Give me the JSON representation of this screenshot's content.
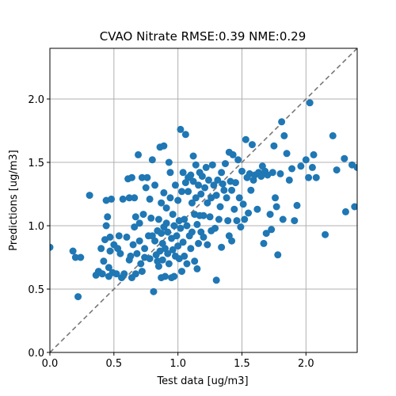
{
  "chart_data": {
    "type": "scatter",
    "title": "CVAO Nitrate RMSE:0.39 NME:0.29",
    "xlabel": "Test data [ug/m3]",
    "ylabel": "Predictions [ug/m3]",
    "xlim": [
      0.0,
      2.4
    ],
    "ylim": [
      0.0,
      2.4
    ],
    "xticks": [
      "0.0",
      "0.5",
      "1.0",
      "1.5",
      "2.0"
    ],
    "yticks": [
      "0.0",
      "0.5",
      "1.0",
      "1.5",
      "2.0"
    ],
    "grid": true,
    "identity_line": true,
    "colors": {
      "points": "#1f77b4",
      "identity_line": "#777777",
      "grid": "#b0b0b0"
    },
    "series": [
      {
        "points": [
          [
            0.0,
            0.83
          ],
          [
            0.18,
            0.8
          ],
          [
            0.2,
            0.75
          ],
          [
            0.22,
            0.44
          ],
          [
            0.24,
            0.75
          ],
          [
            0.31,
            1.24
          ],
          [
            0.36,
            0.61
          ],
          [
            0.38,
            0.64
          ],
          [
            0.4,
            0.82
          ],
          [
            0.41,
            0.62
          ],
          [
            0.42,
            0.72
          ],
          [
            0.43,
            0.89
          ],
          [
            0.44,
            1.0
          ],
          [
            0.44,
            1.2
          ],
          [
            0.45,
            1.07
          ],
          [
            0.46,
            0.6
          ],
          [
            0.46,
            0.67
          ],
          [
            0.47,
            0.8
          ],
          [
            0.47,
            0.91
          ],
          [
            0.48,
            1.21
          ],
          [
            0.49,
            0.63
          ],
          [
            0.5,
            0.85
          ],
          [
            0.52,
            0.62
          ],
          [
            0.53,
            0.82
          ],
          [
            0.54,
            0.92
          ],
          [
            0.55,
            0.78
          ],
          [
            0.56,
            0.59
          ],
          [
            0.57,
            1.21
          ],
          [
            0.58,
            0.62
          ],
          [
            0.6,
            0.91
          ],
          [
            0.61,
            1.37
          ],
          [
            0.62,
            1.22
          ],
          [
            0.62,
            0.73
          ],
          [
            0.63,
            0.76
          ],
          [
            0.64,
            1.38
          ],
          [
            0.64,
            0.59
          ],
          [
            0.65,
            0.85
          ],
          [
            0.66,
            0.99
          ],
          [
            0.66,
            1.22
          ],
          [
            0.67,
            1.07
          ],
          [
            0.67,
            0.62
          ],
          [
            0.68,
            0.78
          ],
          [
            0.69,
            1.56
          ],
          [
            0.7,
            1.02
          ],
          [
            0.7,
            0.88
          ],
          [
            0.71,
            0.7
          ],
          [
            0.72,
            1.38
          ],
          [
            0.72,
            0.64
          ],
          [
            0.73,
            1.09
          ],
          [
            0.74,
            0.82
          ],
          [
            0.74,
            0.75
          ],
          [
            0.75,
            1.3
          ],
          [
            0.76,
            1.38
          ],
          [
            0.77,
            0.92
          ],
          [
            0.78,
            1.21
          ],
          [
            0.78,
            0.74
          ],
          [
            0.79,
            1.06
          ],
          [
            0.8,
            1.52
          ],
          [
            0.8,
            0.92
          ],
          [
            0.81,
            0.48
          ],
          [
            0.82,
            1.32
          ],
          [
            0.82,
            0.88
          ],
          [
            0.83,
            0.77
          ],
          [
            0.84,
            0.96
          ],
          [
            0.84,
            0.72
          ],
          [
            0.85,
            1.05
          ],
          [
            0.85,
            0.68
          ],
          [
            0.86,
            1.62
          ],
          [
            0.86,
            0.8
          ],
          [
            0.87,
            1.18
          ],
          [
            0.87,
            0.94
          ],
          [
            0.87,
            0.59
          ],
          [
            0.88,
            0.86
          ],
          [
            0.88,
            0.73
          ],
          [
            0.89,
            1.63
          ],
          [
            0.89,
            0.99
          ],
          [
            0.89,
            1.26
          ],
          [
            0.9,
            0.82
          ],
          [
            0.9,
            0.6
          ],
          [
            0.91,
            1.14
          ],
          [
            0.91,
            1.02
          ],
          [
            0.92,
            0.95
          ],
          [
            0.92,
            0.78
          ],
          [
            0.93,
            1.5
          ],
          [
            0.93,
            0.7
          ],
          [
            0.94,
            1.42
          ],
          [
            0.94,
            1.22
          ],
          [
            0.95,
            0.9
          ],
          [
            0.95,
            0.59
          ],
          [
            0.96,
            1.09
          ],
          [
            0.96,
            0.81
          ],
          [
            0.97,
            1.0
          ],
          [
            0.97,
            0.6
          ],
          [
            0.98,
            1.32
          ],
          [
            0.98,
            0.76
          ],
          [
            0.99,
            0.92
          ],
          [
            1.0,
            1.2
          ],
          [
            1.0,
            0.84
          ],
          [
            1.01,
            1.04
          ],
          [
            1.01,
            0.74
          ],
          [
            1.02,
            1.76
          ],
          [
            1.02,
            0.98
          ],
          [
            1.03,
            1.27
          ],
          [
            1.03,
            0.64
          ],
          [
            1.04,
            1.42
          ],
          [
            1.04,
            0.87
          ],
          [
            1.05,
            1.05
          ],
          [
            1.05,
            0.76
          ],
          [
            1.06,
            1.72
          ],
          [
            1.06,
            1.34
          ],
          [
            1.07,
            1.0
          ],
          [
            1.07,
            0.7
          ],
          [
            1.08,
            1.38
          ],
          [
            1.08,
            1.27
          ],
          [
            1.09,
            0.92
          ],
          [
            1.1,
            1.4
          ],
          [
            1.1,
            0.82
          ],
          [
            1.11,
            1.18
          ],
          [
            1.11,
            0.95
          ],
          [
            1.12,
            1.55
          ],
          [
            1.12,
            1.35
          ],
          [
            1.13,
            1.09
          ],
          [
            1.13,
            0.72
          ],
          [
            1.14,
            1.48
          ],
          [
            1.14,
            1.22
          ],
          [
            1.15,
            1.01
          ],
          [
            1.15,
            0.66
          ],
          [
            1.16,
            1.32
          ],
          [
            1.16,
            0.86
          ],
          [
            1.17,
            1.42
          ],
          [
            1.17,
            1.08
          ],
          [
            1.18,
            1.25
          ],
          [
            1.18,
            0.95
          ],
          [
            1.19,
            1.39
          ],
          [
            1.2,
            1.08
          ],
          [
            1.2,
            0.91
          ],
          [
            1.21,
            1.3
          ],
          [
            1.22,
            1.46
          ],
          [
            1.23,
            1.18
          ],
          [
            1.23,
            0.85
          ],
          [
            1.24,
            1.36
          ],
          [
            1.25,
            1.07
          ],
          [
            1.26,
            0.96
          ],
          [
            1.26,
            1.22
          ],
          [
            1.27,
            1.48
          ],
          [
            1.28,
            1.32
          ],
          [
            1.29,
            0.98
          ],
          [
            1.3,
            1.24
          ],
          [
            1.3,
            0.57
          ],
          [
            1.31,
            1.36
          ],
          [
            1.32,
            1.05
          ],
          [
            1.33,
            1.15
          ],
          [
            1.34,
            1.42
          ],
          [
            1.34,
            0.83
          ],
          [
            1.35,
            1.33
          ],
          [
            1.36,
            1.28
          ],
          [
            1.37,
            1.49
          ],
          [
            1.38,
            1.22
          ],
          [
            1.39,
            1.04
          ],
          [
            1.4,
            1.58
          ],
          [
            1.4,
            0.92
          ],
          [
            1.41,
            1.35
          ],
          [
            1.42,
            1.28
          ],
          [
            1.42,
            0.88
          ],
          [
            1.43,
            1.56
          ],
          [
            1.44,
            1.13
          ],
          [
            1.45,
            1.34
          ],
          [
            1.46,
            1.04
          ],
          [
            1.47,
            1.52
          ],
          [
            1.48,
            1.22
          ],
          [
            1.49,
            0.99
          ],
          [
            1.5,
            1.43
          ],
          [
            1.51,
            1.17
          ],
          [
            1.52,
            1.05
          ],
          [
            1.53,
            1.68
          ],
          [
            1.54,
            1.38
          ],
          [
            1.55,
            1.1
          ],
          [
            1.56,
            1.41
          ],
          [
            1.57,
            1.28
          ],
          [
            1.58,
            1.64
          ],
          [
            1.59,
            1.36
          ],
          [
            1.6,
            1.4
          ],
          [
            1.62,
            1.13
          ],
          [
            1.63,
            1.42
          ],
          [
            1.65,
            1.39
          ],
          [
            1.66,
            1.47
          ],
          [
            1.67,
            0.86
          ],
          [
            1.68,
            1.43
          ],
          [
            1.69,
            0.94
          ],
          [
            1.7,
            1.4
          ],
          [
            1.72,
            1.09
          ],
          [
            1.73,
            0.97
          ],
          [
            1.74,
            1.42
          ],
          [
            1.75,
            1.63
          ],
          [
            1.76,
            1.22
          ],
          [
            1.77,
            1.15
          ],
          [
            1.78,
            0.77
          ],
          [
            1.8,
            1.41
          ],
          [
            1.81,
            1.82
          ],
          [
            1.82,
            1.05
          ],
          [
            1.83,
            1.71
          ],
          [
            1.85,
            1.57
          ],
          [
            1.87,
            1.36
          ],
          [
            1.89,
            1.45
          ],
          [
            1.91,
            1.04
          ],
          [
            1.93,
            1.16
          ],
          [
            1.96,
            1.47
          ],
          [
            2.0,
            1.52
          ],
          [
            2.02,
            1.38
          ],
          [
            2.03,
            1.97
          ],
          [
            2.05,
            1.46
          ],
          [
            2.06,
            1.56
          ],
          [
            2.08,
            1.38
          ],
          [
            2.15,
            0.93
          ],
          [
            2.21,
            1.71
          ],
          [
            2.24,
            1.44
          ],
          [
            2.3,
            1.53
          ],
          [
            2.31,
            1.11
          ],
          [
            2.36,
            1.48
          ],
          [
            2.38,
            1.15
          ],
          [
            2.4,
            1.46
          ]
        ]
      }
    ]
  }
}
